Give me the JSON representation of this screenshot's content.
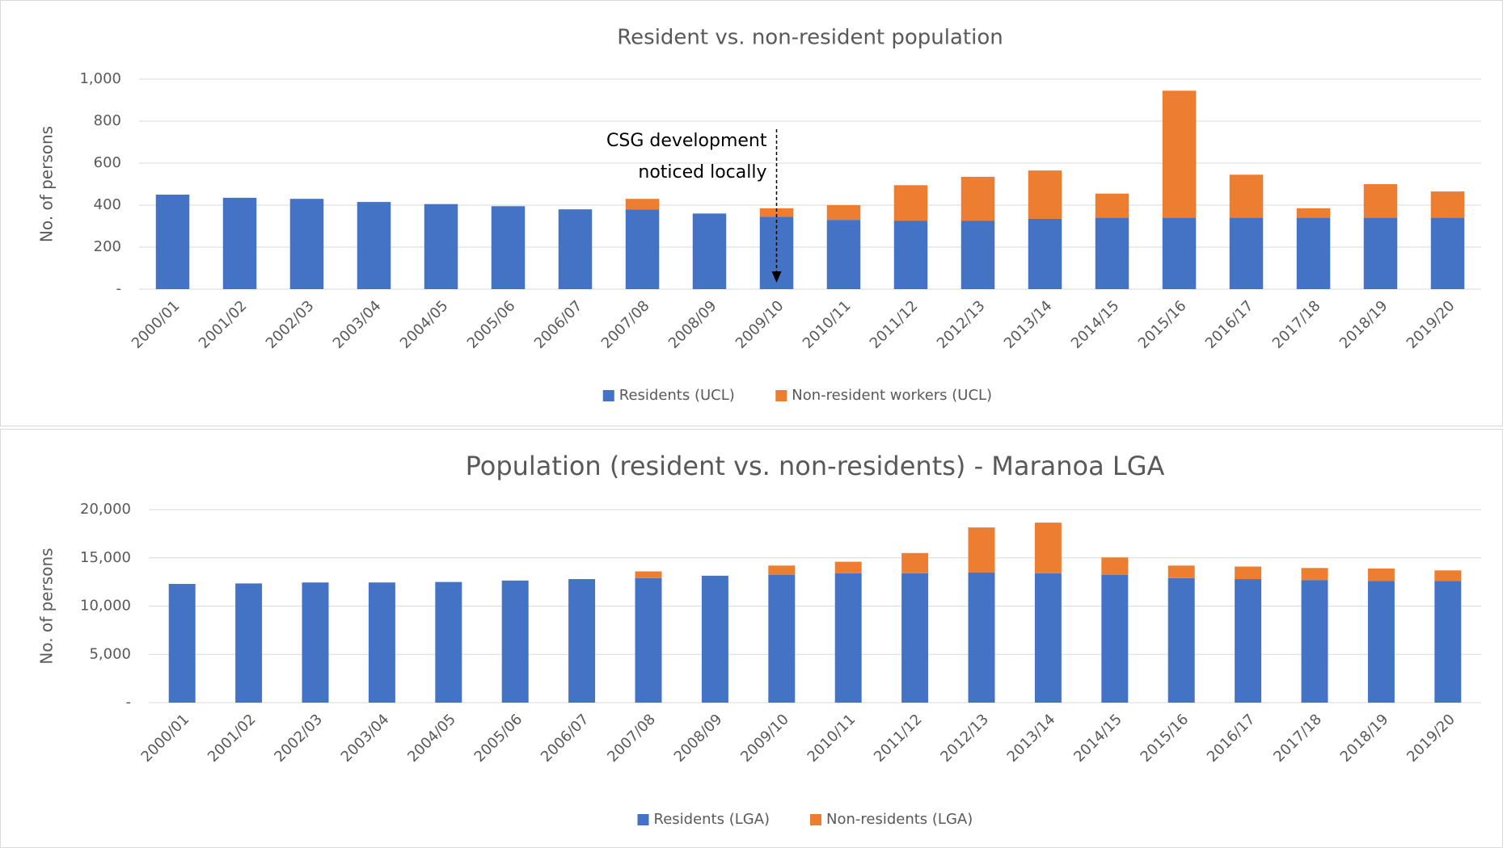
{
  "chart_data": [
    {
      "type": "stacked_bar",
      "title": "Resident vs. non-resident population",
      "y_label": "No. of persons",
      "categories": [
        "2000/01",
        "2001/02",
        "2002/03",
        "2003/04",
        "2004/05",
        "2005/06",
        "2006/07",
        "2007/08",
        "2008/09",
        "2009/10",
        "2010/11",
        "2011/12",
        "2012/13",
        "2013/14",
        "2014/15",
        "2015/16",
        "2016/17",
        "2017/18",
        "2018/19",
        "2019/20"
      ],
      "series": [
        {
          "name": "Residents (UCL)",
          "color": "#4472c4",
          "values": [
            450,
            435,
            430,
            415,
            405,
            395,
            380,
            380,
            360,
            345,
            330,
            325,
            325,
            335,
            340,
            340,
            340,
            340,
            340,
            340
          ]
        },
        {
          "name": "Non-resident workers (UCL)",
          "color": "#ed7d31",
          "values": [
            0,
            0,
            0,
            0,
            0,
            0,
            0,
            50,
            0,
            40,
            70,
            170,
            210,
            230,
            115,
            605,
            205,
            45,
            160,
            125
          ]
        }
      ],
      "annotation": [
        "CSG development",
        "noticed locally"
      ],
      "ylim": [
        0,
        1000
      ],
      "yticks": [
        {
          "value": 0,
          "label": "-"
        },
        200,
        400,
        600,
        800,
        {
          "value": 1000,
          "label": "1,000"
        }
      ],
      "grid": true,
      "legend": "bottom"
    },
    {
      "type": "stacked_bar",
      "title": "Population (resident vs. non-residents) - Maranoa LGA",
      "y_label": "No. of persons",
      "categories": [
        "2000/01",
        "2001/02",
        "2002/03",
        "2003/04",
        "2004/05",
        "2005/06",
        "2006/07",
        "2007/08",
        "2008/09",
        "2009/10",
        "2010/11",
        "2011/12",
        "2012/13",
        "2013/14",
        "2014/15",
        "2015/16",
        "2016/17",
        "2017/18",
        "2018/19",
        "2019/20"
      ],
      "series": [
        {
          "name": "Residents (LGA)",
          "color": "#4472c4",
          "values": [
            12300,
            12350,
            12450,
            12450,
            12500,
            12650,
            12800,
            12900,
            13150,
            13250,
            13400,
            13400,
            13500,
            13400,
            13250,
            12900,
            12800,
            12700,
            12600,
            12600
          ]
        },
        {
          "name": "Non-residents (LGA)",
          "color": "#ed7d31",
          "values": [
            0,
            0,
            0,
            0,
            0,
            0,
            0,
            700,
            0,
            950,
            1200,
            2100,
            4650,
            5250,
            1800,
            1300,
            1300,
            1250,
            1300,
            1100
          ]
        }
      ],
      "ylim": [
        0,
        20000
      ],
      "yticks": [
        {
          "value": 0,
          "label": "-"
        },
        {
          "value": 5000,
          "label": "5,000"
        },
        {
          "value": 10000,
          "label": "10,000"
        },
        {
          "value": 15000,
          "label": "15,000"
        },
        {
          "value": 20000,
          "label": "20,000"
        }
      ],
      "grid": true,
      "legend": "bottom"
    }
  ]
}
